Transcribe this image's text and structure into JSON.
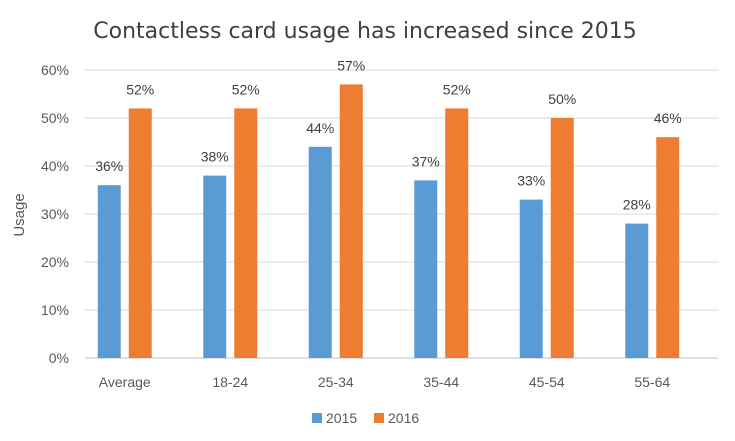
{
  "colors": {
    "series_2015": "#5B9BD5",
    "series_2016": "#ED7D31",
    "grid": "#D9D9D9",
    "axis": "#BFBFBF"
  },
  "chart_data": {
    "type": "bar",
    "title": "Contactless card usage has increased since 2015",
    "xlabel": "",
    "ylabel": "Usage",
    "ylim": [
      0,
      60
    ],
    "yticks": [
      "0%",
      "10%",
      "20%",
      "30%",
      "40%",
      "50%",
      "60%"
    ],
    "grid": true,
    "legend_position": "bottom",
    "categories": [
      "Average",
      "18-24",
      "25-34",
      "35-44",
      "45-54",
      "55-64"
    ],
    "series": [
      {
        "name": "2015",
        "values": [
          36,
          38,
          44,
          37,
          33,
          28
        ],
        "labels": [
          "36%",
          "38%",
          "44%",
          "37%",
          "33%",
          "28%"
        ]
      },
      {
        "name": "2016",
        "values": [
          52,
          52,
          57,
          52,
          50,
          46
        ],
        "labels": [
          "52%",
          "52%",
          "57%",
          "52%",
          "50%",
          "46%"
        ]
      }
    ]
  }
}
